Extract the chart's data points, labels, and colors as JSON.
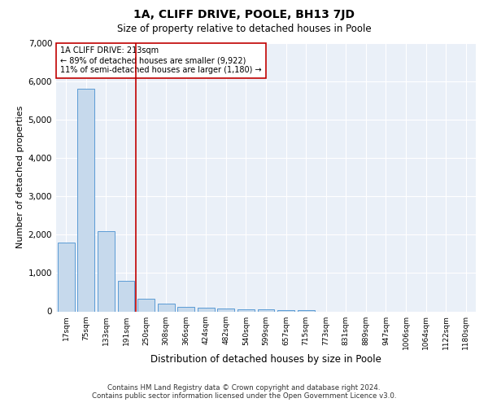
{
  "title": "1A, CLIFF DRIVE, POOLE, BH13 7JD",
  "subtitle": "Size of property relative to detached houses in Poole",
  "xlabel": "Distribution of detached houses by size in Poole",
  "ylabel": "Number of detached properties",
  "bar_color": "#c6d9ec",
  "bar_edge_color": "#5b9bd5",
  "vline_color": "#c00000",
  "annotation_line1": "1A CLIFF DRIVE: 213sqm",
  "annotation_line2": "← 89% of detached houses are smaller (9,922)",
  "annotation_line3": "11% of semi-detached houses are larger (1,180) →",
  "annotation_box_color": "#ffffff",
  "annotation_box_edge": "#c00000",
  "categories": [
    "17sqm",
    "75sqm",
    "133sqm",
    "191sqm",
    "250sqm",
    "308sqm",
    "366sqm",
    "424sqm",
    "482sqm",
    "540sqm",
    "599sqm",
    "657sqm",
    "715sqm",
    "773sqm",
    "831sqm",
    "889sqm",
    "947sqm",
    "1006sqm",
    "1064sqm",
    "1122sqm",
    "1180sqm"
  ],
  "values": [
    1800,
    5800,
    2100,
    800,
    320,
    200,
    120,
    100,
    75,
    55,
    45,
    35,
    25,
    0,
    0,
    0,
    0,
    0,
    0,
    0,
    0
  ],
  "ylim": [
    0,
    7000
  ],
  "yticks": [
    0,
    1000,
    2000,
    3000,
    4000,
    5000,
    6000,
    7000
  ],
  "background_color": "#eaf0f8",
  "footer_line1": "Contains HM Land Registry data © Crown copyright and database right 2024.",
  "footer_line2": "Contains public sector information licensed under the Open Government Licence v3.0."
}
